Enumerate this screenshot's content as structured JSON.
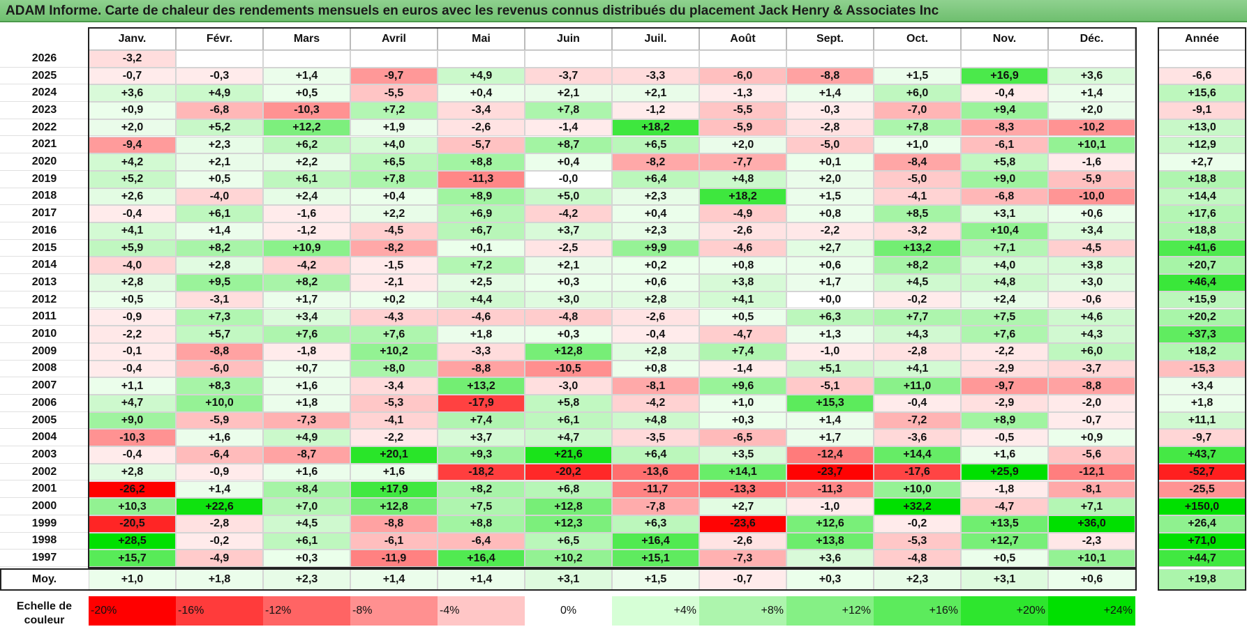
{
  "title": "ADAM Informe. Carte de chaleur des rendements mensuels en euros avec les revenus connus distribués du placement Jack Henry & Associates Inc",
  "chart_data": {
    "type": "heatmap",
    "columns": [
      "Janv.",
      "Févr.",
      "Mars",
      "Avril",
      "Mai",
      "Juin",
      "Juil.",
      "Août",
      "Sept.",
      "Oct.",
      "Nov.",
      "Déc."
    ],
    "year_header": "Année",
    "rows": [
      {
        "year": "2026",
        "months": [
          "-3,2",
          "",
          "",
          "",
          "",
          "",
          "",
          "",
          "",
          "",
          "",
          ""
        ],
        "annual": ""
      },
      {
        "year": "2025",
        "months": [
          "-0,7",
          "-0,3",
          "+1,4",
          "-9,7",
          "+4,9",
          "-3,7",
          "-3,3",
          "-6,0",
          "-8,8",
          "+1,5",
          "+16,9",
          "+3,6"
        ],
        "annual": "-6,6"
      },
      {
        "year": "2024",
        "months": [
          "+3,6",
          "+4,9",
          "+0,5",
          "-5,5",
          "+0,4",
          "+2,1",
          "+2,1",
          "-1,3",
          "+1,4",
          "+6,0",
          "-0,4",
          "+1,4"
        ],
        "annual": "+15,6"
      },
      {
        "year": "2023",
        "months": [
          "+0,9",
          "-6,8",
          "-10,3",
          "+7,2",
          "-3,4",
          "+7,8",
          "-1,2",
          "-5,5",
          "-0,3",
          "-7,0",
          "+9,4",
          "+2,0"
        ],
        "annual": "-9,1"
      },
      {
        "year": "2022",
        "months": [
          "+2,0",
          "+5,2",
          "+12,2",
          "+1,9",
          "-2,6",
          "-1,4",
          "+18,2",
          "-5,9",
          "-2,8",
          "+7,8",
          "-8,3",
          "-10,2"
        ],
        "annual": "+13,0"
      },
      {
        "year": "2021",
        "months": [
          "-9,4",
          "+2,3",
          "+6,2",
          "+4,0",
          "-5,7",
          "+8,7",
          "+6,5",
          "+2,0",
          "-5,0",
          "+1,0",
          "-6,1",
          "+10,1"
        ],
        "annual": "+12,9"
      },
      {
        "year": "2020",
        "months": [
          "+4,2",
          "+2,1",
          "+2,2",
          "+6,5",
          "+8,8",
          "+0,4",
          "-8,2",
          "-7,7",
          "+0,1",
          "-8,4",
          "+5,8",
          "-1,6"
        ],
        "annual": "+2,7"
      },
      {
        "year": "2019",
        "months": [
          "+5,2",
          "+0,5",
          "+6,1",
          "+7,8",
          "-11,3",
          "-0,0",
          "+6,4",
          "+4,8",
          "+2,0",
          "-5,0",
          "+9,0",
          "-5,9"
        ],
        "annual": "+18,8"
      },
      {
        "year": "2018",
        "months": [
          "+2,6",
          "-4,0",
          "+2,4",
          "+0,4",
          "+8,9",
          "+5,0",
          "+2,3",
          "+18,2",
          "+1,5",
          "-4,1",
          "-6,8",
          "-10,0"
        ],
        "annual": "+14,4"
      },
      {
        "year": "2017",
        "months": [
          "-0,4",
          "+6,1",
          "-1,6",
          "+2,2",
          "+6,9",
          "-4,2",
          "+0,4",
          "-4,9",
          "+0,8",
          "+8,5",
          "+3,1",
          "+0,6"
        ],
        "annual": "+17,6"
      },
      {
        "year": "2016",
        "months": [
          "+4,1",
          "+1,4",
          "-1,2",
          "-4,5",
          "+6,7",
          "+3,7",
          "+2,3",
          "-2,6",
          "-2,2",
          "-3,2",
          "+10,4",
          "+3,4"
        ],
        "annual": "+18,8"
      },
      {
        "year": "2015",
        "months": [
          "+5,9",
          "+8,2",
          "+10,9",
          "-8,2",
          "+0,1",
          "-2,5",
          "+9,9",
          "-4,6",
          "+2,7",
          "+13,2",
          "+7,1",
          "-4,5"
        ],
        "annual": "+41,6"
      },
      {
        "year": "2014",
        "months": [
          "-4,0",
          "+2,8",
          "-4,2",
          "-1,5",
          "+7,2",
          "+2,1",
          "+0,2",
          "+0,8",
          "+0,6",
          "+8,2",
          "+4,0",
          "+3,8"
        ],
        "annual": "+20,7"
      },
      {
        "year": "2013",
        "months": [
          "+2,8",
          "+9,5",
          "+8,2",
          "-2,1",
          "+2,5",
          "+0,3",
          "+0,6",
          "+3,8",
          "+1,7",
          "+4,5",
          "+4,8",
          "+3,0"
        ],
        "annual": "+46,4"
      },
      {
        "year": "2012",
        "months": [
          "+0,5",
          "-3,1",
          "+1,7",
          "+0,2",
          "+4,4",
          "+3,0",
          "+2,8",
          "+4,1",
          "+0,0",
          "-0,2",
          "+2,4",
          "-0,6"
        ],
        "annual": "+15,9"
      },
      {
        "year": "2011",
        "months": [
          "-0,9",
          "+7,3",
          "+3,4",
          "-4,3",
          "-4,6",
          "-4,8",
          "-2,6",
          "+0,5",
          "+6,3",
          "+7,7",
          "+7,5",
          "+4,6"
        ],
        "annual": "+20,2"
      },
      {
        "year": "2010",
        "months": [
          "-2,2",
          "+5,7",
          "+7,6",
          "+7,6",
          "+1,8",
          "+0,3",
          "-0,4",
          "-4,7",
          "+1,3",
          "+4,3",
          "+7,6",
          "+4,3"
        ],
        "annual": "+37,3"
      },
      {
        "year": "2009",
        "months": [
          "-0,1",
          "-8,8",
          "-1,8",
          "+10,2",
          "-3,3",
          "+12,8",
          "+2,8",
          "+7,4",
          "-1,0",
          "-2,8",
          "-2,2",
          "+6,0"
        ],
        "annual": "+18,2"
      },
      {
        "year": "2008",
        "months": [
          "-0,4",
          "-6,0",
          "+0,7",
          "+8,0",
          "-8,8",
          "-10,5",
          "+0,8",
          "-1,4",
          "+5,1",
          "+4,1",
          "-2,9",
          "-3,7"
        ],
        "annual": "-15,3"
      },
      {
        "year": "2007",
        "months": [
          "+1,1",
          "+8,3",
          "+1,6",
          "-3,4",
          "+13,2",
          "-3,0",
          "-8,1",
          "+9,6",
          "-5,1",
          "+11,0",
          "-9,7",
          "-8,8"
        ],
        "annual": "+3,4"
      },
      {
        "year": "2006",
        "months": [
          "+4,7",
          "+10,0",
          "+1,8",
          "-5,3",
          "-17,9",
          "+5,8",
          "-4,2",
          "+1,0",
          "+15,3",
          "-0,4",
          "-2,9",
          "-2,0"
        ],
        "annual": "+1,8"
      },
      {
        "year": "2005",
        "months": [
          "+9,0",
          "-5,9",
          "-7,3",
          "-4,1",
          "+7,4",
          "+6,1",
          "+4,8",
          "+0,3",
          "+1,4",
          "-7,2",
          "+8,9",
          "-0,7"
        ],
        "annual": "+11,1"
      },
      {
        "year": "2004",
        "months": [
          "-10,3",
          "+1,6",
          "+4,9",
          "-2,2",
          "+3,7",
          "+4,7",
          "-3,5",
          "-6,5",
          "+1,7",
          "-3,6",
          "-0,5",
          "+0,9"
        ],
        "annual": "-9,7"
      },
      {
        "year": "2003",
        "months": [
          "-0,4",
          "-6,4",
          "-8,7",
          "+20,1",
          "+9,3",
          "+21,6",
          "+6,4",
          "+3,5",
          "-12,4",
          "+14,4",
          "+1,6",
          "-5,6"
        ],
        "annual": "+43,7"
      },
      {
        "year": "2002",
        "months": [
          "+2,8",
          "-0,9",
          "+1,6",
          "+1,6",
          "-18,2",
          "-20,2",
          "-13,6",
          "+14,1",
          "-23,7",
          "-17,6",
          "+25,9",
          "-12,1"
        ],
        "annual": "-52,7"
      },
      {
        "year": "2001",
        "months": [
          "-26,2",
          "+1,4",
          "+8,4",
          "+17,9",
          "+8,2",
          "+6,8",
          "-11,7",
          "-13,3",
          "-11,3",
          "+10,0",
          "-1,8",
          "-8,1"
        ],
        "annual": "-25,5"
      },
      {
        "year": "2000",
        "months": [
          "+10,3",
          "+22,6",
          "+7,0",
          "+12,8",
          "+7,5",
          "+12,8",
          "-7,8",
          "+2,7",
          "-1,0",
          "+32,2",
          "-4,7",
          "+7,1"
        ],
        "annual": "+150,0"
      },
      {
        "year": "1999",
        "months": [
          "-20,5",
          "-2,8",
          "+4,5",
          "-8,8",
          "+8,8",
          "+12,3",
          "+6,3",
          "-23,6",
          "+12,6",
          "-0,2",
          "+13,5",
          "+36,0"
        ],
        "annual": "+26,4"
      },
      {
        "year": "1998",
        "months": [
          "+28,5",
          "-0,2",
          "+6,1",
          "-6,1",
          "-6,4",
          "+6,5",
          "+16,4",
          "-2,6",
          "+13,8",
          "-5,3",
          "+12,7",
          "-2,3"
        ],
        "annual": "+71,0"
      },
      {
        "year": "1997",
        "months": [
          "+15,7",
          "-4,9",
          "+0,3",
          "-11,9",
          "+16,4",
          "+10,2",
          "+15,1",
          "-7,3",
          "+3,6",
          "-4,8",
          "+0,5",
          "+10,1"
        ],
        "annual": "+44,7"
      }
    ],
    "average": {
      "label": "Moy.",
      "months": [
        "+1,0",
        "+1,8",
        "+2,3",
        "+1,4",
        "+1,4",
        "+3,1",
        "+1,5",
        "-0,7",
        "+0,3",
        "+2,3",
        "+3,1",
        "+0,6"
      ],
      "annual": "+19,8"
    },
    "legend": {
      "label_line1": "Echelle de",
      "label_line2": "couleur",
      "steps": [
        {
          "label": "-20%",
          "value": -20,
          "color": "#ff0000"
        },
        {
          "label": "-16%",
          "value": -16,
          "color": "#ff3b3b"
        },
        {
          "label": "-12%",
          "value": -12,
          "color": "#ff6464"
        },
        {
          "label": "-8%",
          "value": -8,
          "color": "#ff9090"
        },
        {
          "label": "-4%",
          "value": -4,
          "color": "#ffc6c6"
        },
        {
          "label": "0%",
          "value": 0,
          "color": "#ffffff"
        },
        {
          "label": "+4%",
          "value": 4,
          "color": "#d6ffd6"
        },
        {
          "label": "+8%",
          "value": 8,
          "color": "#adf5ad"
        },
        {
          "label": "+12%",
          "value": 12,
          "color": "#85f085"
        },
        {
          "label": "+16%",
          "value": 16,
          "color": "#5ceb5c"
        },
        {
          "label": "+20%",
          "value": 20,
          "color": "#2ee62e"
        },
        {
          "label": "+24%",
          "value": 24,
          "color": "#00e000"
        }
      ]
    }
  }
}
